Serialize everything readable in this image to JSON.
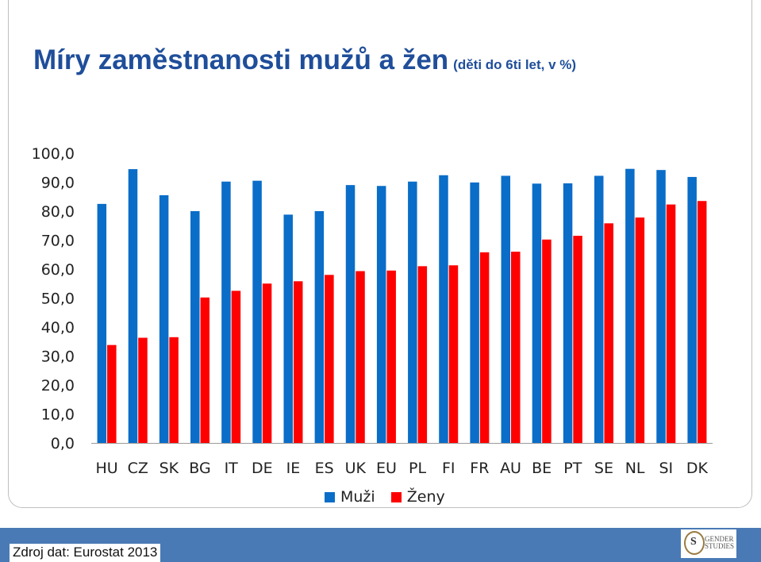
{
  "title": {
    "main": "Míry zaměstnanosti mužů a žen",
    "sub": "(děti do 6ti let, v %)"
  },
  "footer": {
    "source": "Zdroj dat: Eurostat 2013"
  },
  "logo": {
    "mark": "S",
    "text_line1": "GENDER",
    "text_line2": "STUDIES"
  },
  "colors": {
    "men": "#0a6dc8",
    "women": "#ff0000",
    "footer_bg": "#4a7ab6",
    "title": "#1f4e9a"
  },
  "chart_data": {
    "type": "bar",
    "categories": [
      "HU",
      "CZ",
      "SK",
      "BG",
      "IT",
      "DE",
      "IE",
      "ES",
      "UK",
      "EU",
      "PL",
      "FI",
      "FR",
      "AU",
      "BE",
      "PT",
      "SE",
      "NL",
      "SI",
      "DK"
    ],
    "series": [
      {
        "name": "Muži",
        "values": [
          82.5,
          94.5,
          85.5,
          80.0,
          90.2,
          90.5,
          78.8,
          80.0,
          89.0,
          88.7,
          90.2,
          92.4,
          89.9,
          92.2,
          89.5,
          89.6,
          92.2,
          94.6,
          94.2,
          91.8
        ]
      },
      {
        "name": "Ženy",
        "values": [
          33.8,
          36.3,
          36.5,
          50.2,
          52.5,
          55.0,
          55.8,
          58.0,
          59.3,
          59.5,
          61.0,
          61.3,
          65.8,
          66.0,
          70.2,
          71.5,
          75.8,
          77.8,
          82.3,
          83.5
        ]
      }
    ],
    "ylim": [
      0,
      100
    ],
    "yticks": [
      "0,0",
      "10,0",
      "20,0",
      "30,0",
      "40,0",
      "50,0",
      "60,0",
      "70,0",
      "80,0",
      "90,0",
      "100,0"
    ],
    "legend_position": "bottom",
    "grid": false
  }
}
